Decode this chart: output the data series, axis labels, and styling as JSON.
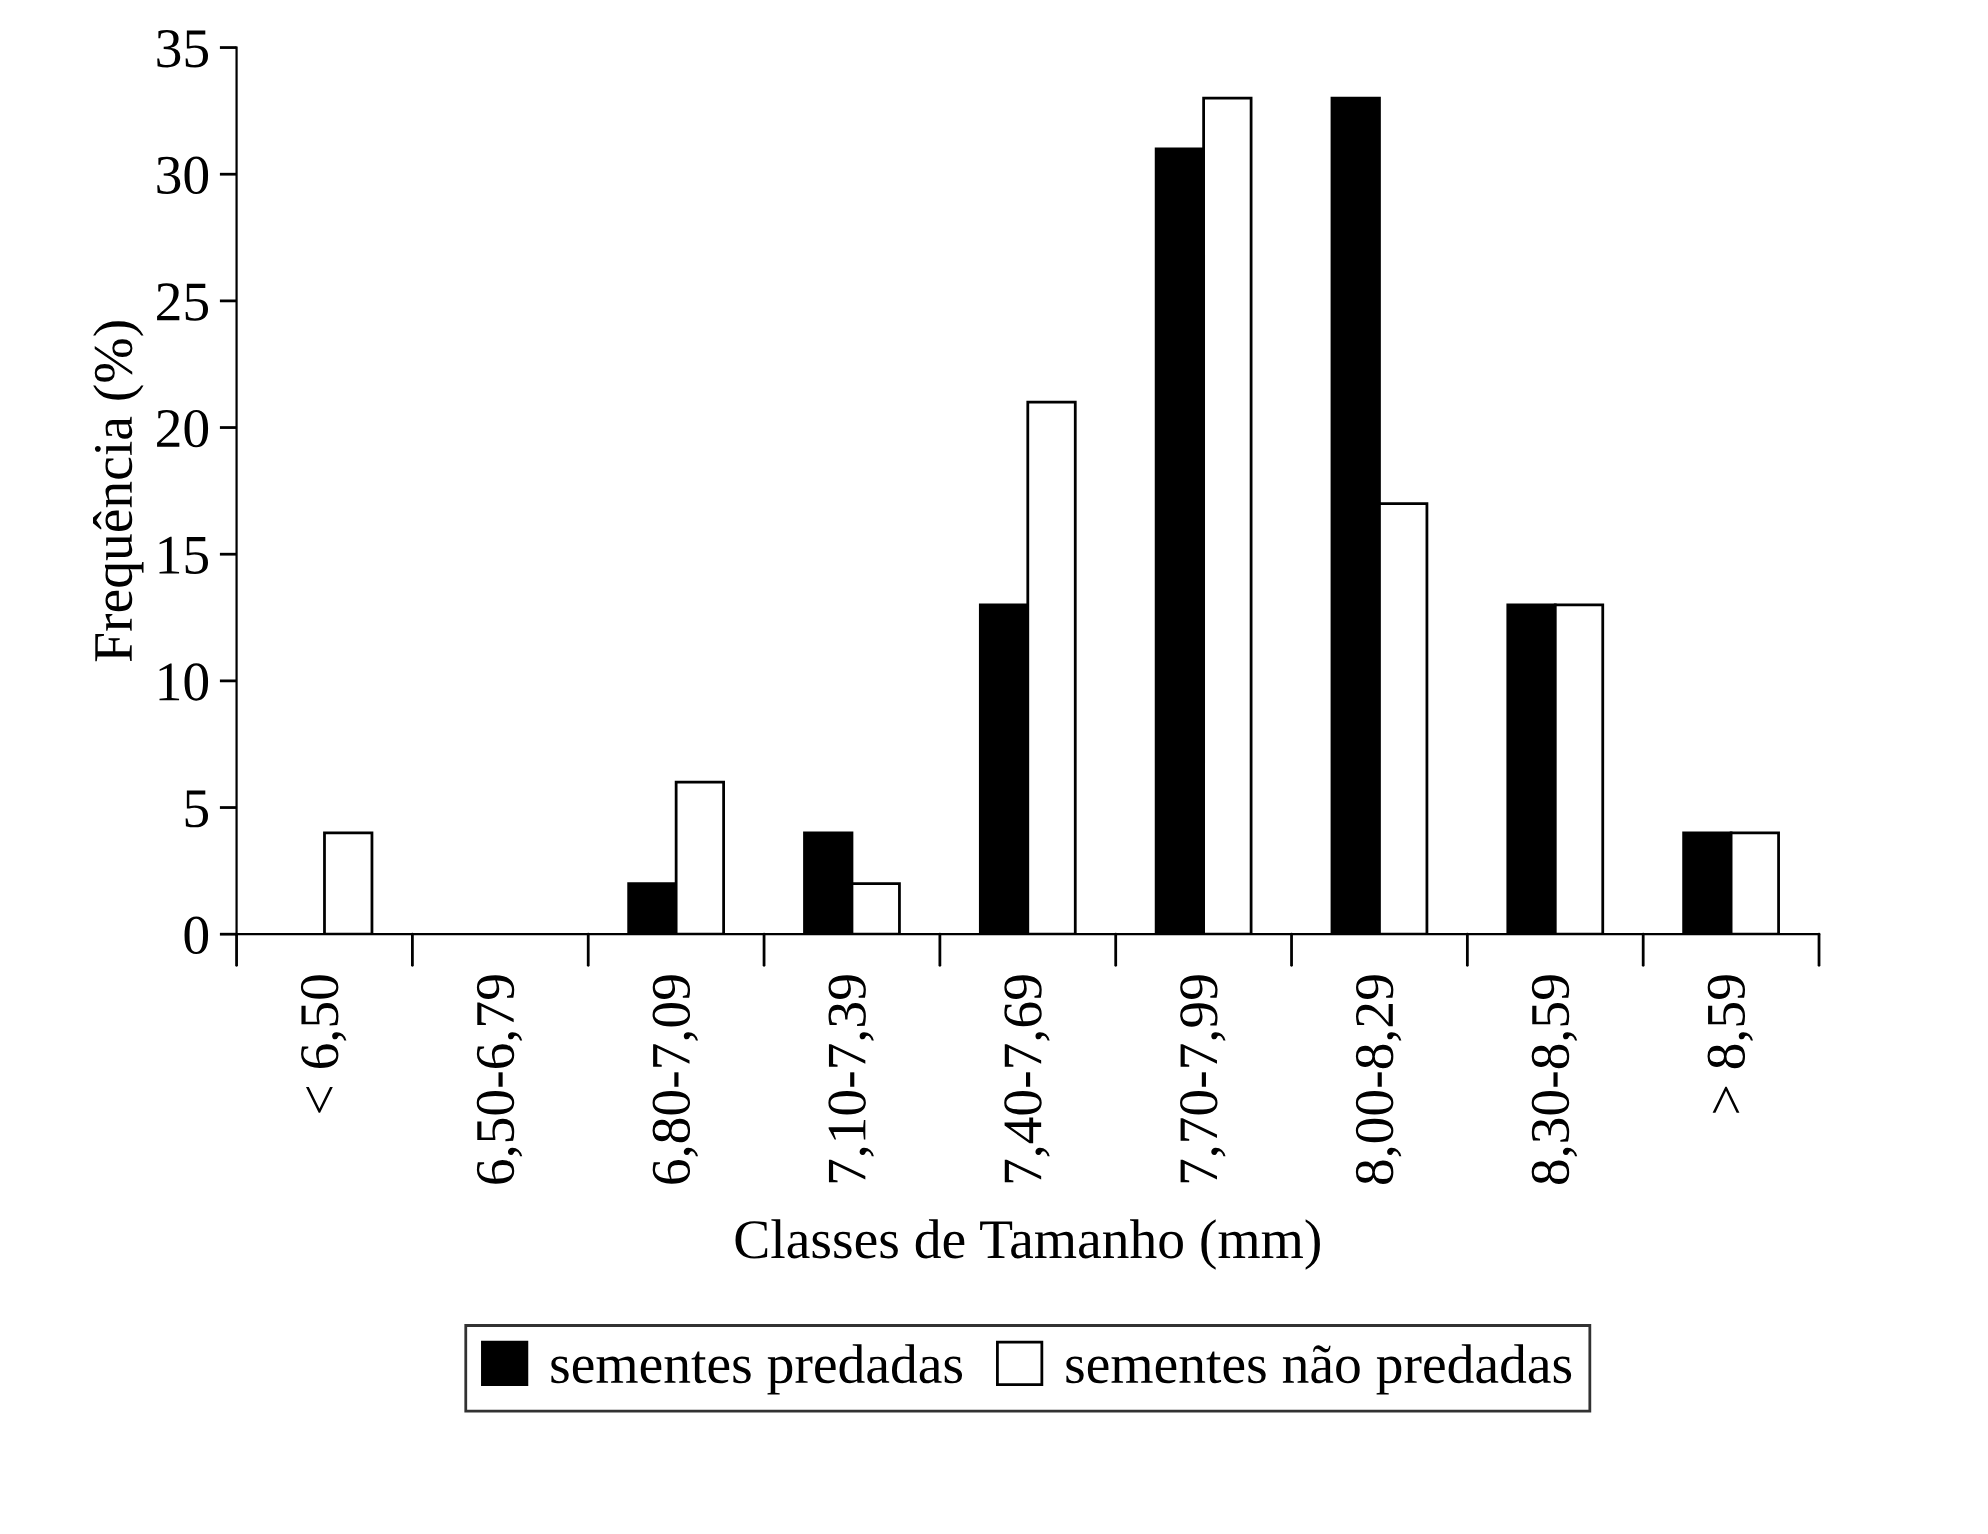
{
  "chart_data": {
    "type": "bar",
    "xlabel": "Classes de Tamanho (mm)",
    "ylabel": "Frequência (%)",
    "categories": [
      "< 6,50",
      "6,50-6,79",
      "6,80-7,09",
      "7,10-7,39",
      "7,40-7,69",
      "7,70-7,99",
      "8,00-8,29",
      "8,30-8,59",
      "> 8,59"
    ],
    "series": [
      {
        "name": "sementes predadas",
        "color": "#000000",
        "values": [
          0,
          0,
          2,
          4,
          13,
          31,
          33,
          13,
          4
        ]
      },
      {
        "name": "sementes não predadas",
        "color": "#ffffff",
        "values": [
          4,
          0,
          6,
          2,
          21,
          33,
          17,
          13,
          4
        ]
      }
    ],
    "ylim": [
      0,
      35
    ],
    "yticks": [
      0,
      5,
      10,
      15,
      20,
      25,
      30,
      35
    ],
    "grid": false,
    "legend": "bottom"
  }
}
